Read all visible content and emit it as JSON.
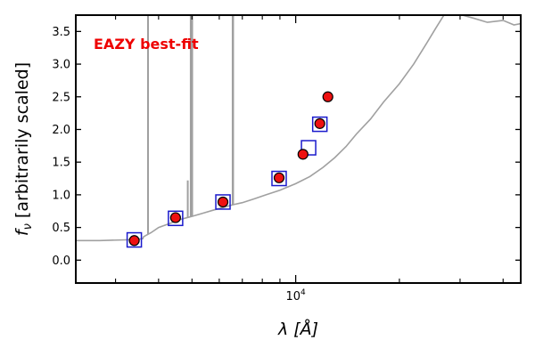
{
  "chart_data": {
    "type": "scatter",
    "title": "",
    "annotation": {
      "text": "EAZY best-fit",
      "color": "#ee0000",
      "position": "top-left"
    },
    "xlabel": "λ [Å]",
    "ylabel": "f_ν [arbitrarily scaled]",
    "x_scale": "log",
    "xlim": [
      2300,
      45000
    ],
    "ylim": [
      -0.35,
      3.75
    ],
    "x_ticks": [
      {
        "value": 10000,
        "label": "10^4"
      }
    ],
    "y_ticks": [
      {
        "value": 0.0,
        "label": "0.0"
      },
      {
        "value": 0.5,
        "label": "0.5"
      },
      {
        "value": 1.0,
        "label": "1.0"
      },
      {
        "value": 1.5,
        "label": "1.5"
      },
      {
        "value": 2.0,
        "label": "2.0"
      },
      {
        "value": 2.5,
        "label": "2.5"
      },
      {
        "value": 3.0,
        "label": "3.0"
      },
      {
        "value": 3.5,
        "label": "3.5"
      }
    ],
    "grid": false,
    "series": [
      {
        "kind": "line",
        "color": "#a0a0a0",
        "x": [
          2300,
          2700,
          3200,
          3500,
          3600,
          3620,
          3800,
          4000,
          4300,
          4600,
          5000,
          5400,
          5800,
          6200,
          6600,
          7000,
          7600,
          8200,
          9000,
          10000,
          11000,
          12000,
          13000,
          14000,
          15000,
          16500,
          18000,
          20000,
          22000,
          24000,
          25500,
          27000,
          29000,
          30000,
          33000,
          36000,
          40000,
          43000,
          45000
        ],
        "y": [
          0.3,
          0.3,
          0.31,
          0.32,
          0.33,
          0.36,
          0.42,
          0.5,
          0.56,
          0.62,
          0.67,
          0.72,
          0.77,
          0.81,
          0.85,
          0.88,
          0.94,
          1.0,
          1.07,
          1.17,
          1.28,
          1.42,
          1.57,
          1.74,
          1.93,
          2.16,
          2.42,
          2.7,
          3.0,
          3.32,
          3.55,
          3.76,
          3.8,
          3.76,
          3.7,
          3.64,
          3.67,
          3.6,
          3.62
        ]
      },
      {
        "kind": "line",
        "role": "emission-lines",
        "color": "#a0a0a0",
        "x": [
          3727,
          4861,
          4959,
          5007,
          6563,
          6583
        ],
        "y": [
          3.8,
          1.22,
          3.8,
          3.8,
          3.8,
          3.8
        ]
      },
      {
        "kind": "markers",
        "marker": "square",
        "edge_color": "#1a1acc",
        "x": [
          3400,
          4480,
          6150,
          8950,
          10900,
          11750
        ],
        "y": [
          0.31,
          0.64,
          0.89,
          1.25,
          1.72,
          2.08
        ]
      },
      {
        "kind": "markers",
        "marker": "circle",
        "fill": "#ee1111",
        "edge_color": "#000000",
        "x": [
          3400,
          4480,
          6150,
          8950,
          10500,
          11750,
          12400
        ],
        "y": [
          0.3,
          0.65,
          0.89,
          1.26,
          1.62,
          2.09,
          2.5
        ]
      }
    ]
  }
}
